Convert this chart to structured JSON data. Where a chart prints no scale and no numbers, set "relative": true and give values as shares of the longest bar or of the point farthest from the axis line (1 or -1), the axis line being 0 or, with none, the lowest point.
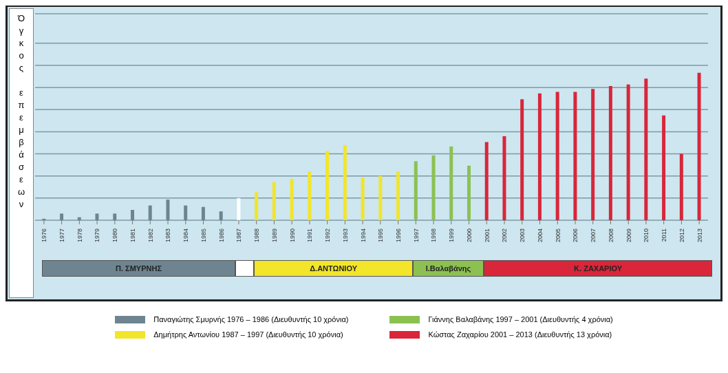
{
  "chart_data": {
    "type": "bar",
    "relative": true,
    "stacked": true,
    "ylabel": "Όγκος επεμβάσεων",
    "grid": "y",
    "legend": "bottom",
    "categories": [
      "1976",
      "1977",
      "1978",
      "1979",
      "1980",
      "1981",
      "1982",
      "1983",
      "1984",
      "1985",
      "1986",
      "1987",
      "1988",
      "1989",
      "1990",
      "1991",
      "1992",
      "1993",
      "1994",
      "1995",
      "1996",
      "1997",
      "1998",
      "1999",
      "2000",
      "2001",
      "2002",
      "2003",
      "2004",
      "2005",
      "2006",
      "2007",
      "2008",
      "2009",
      "2010",
      "2011",
      "2012",
      "2013"
    ],
    "series": [
      {
        "name": "Παναγιώτης Σμυρνής 1976 – 1986 (Διευθυντής 10 χρόνια)",
        "color": "#6e8591",
        "values": [
          0.01,
          0.045,
          0.02,
          0.045,
          0.045,
          0.07,
          0.1,
          0.14,
          0.1,
          0.09,
          0.06,
          null,
          null,
          null,
          null,
          null,
          null,
          null,
          null,
          null,
          null,
          null,
          null,
          null,
          null,
          null,
          null,
          null,
          null,
          null,
          null,
          null,
          null,
          null,
          null,
          null,
          null,
          null
        ]
      },
      {
        "color": "#ffffff",
        "values": [
          null,
          null,
          null,
          null,
          null,
          null,
          null,
          null,
          null,
          null,
          null,
          0.15,
          null,
          null,
          null,
          null,
          null,
          null,
          null,
          null,
          null,
          null,
          null,
          null,
          null,
          null,
          null,
          null,
          null,
          null,
          null,
          null,
          null,
          null,
          null,
          null,
          null,
          null
        ]
      },
      {
        "name": "Δημήτρης Αντωνίου 1987 – 1997 (Διευθυντής 10 χρόνια)",
        "color": "#f2e52a",
        "values": [
          null,
          null,
          null,
          null,
          null,
          null,
          null,
          null,
          null,
          null,
          null,
          null,
          0.19,
          0.26,
          0.28,
          0.33,
          0.47,
          0.51,
          0.29,
          0.3,
          0.33,
          null,
          null,
          null,
          null,
          null,
          null,
          null,
          null,
          null,
          null,
          null,
          null,
          null,
          null,
          null,
          null,
          null
        ]
      },
      {
        "name": "Γιάννης Βαλαβάνης 1997 – 2001 (Διευθυντής 4 χρόνια)",
        "color": "#8cc152",
        "values": [
          null,
          null,
          null,
          null,
          null,
          null,
          null,
          null,
          null,
          null,
          null,
          null,
          null,
          null,
          null,
          null,
          null,
          null,
          null,
          null,
          null,
          0.4,
          0.44,
          0.5,
          0.37,
          null,
          null,
          null,
          null,
          null,
          null,
          null,
          null,
          null,
          null,
          null,
          null,
          null
        ]
      },
      {
        "name": "Κώστας Ζαχαρίου 2001 – 2013 (Διευθυντής 13 χρόνια)",
        "color": "#d9263a",
        "values": [
          null,
          null,
          null,
          null,
          null,
          null,
          null,
          null,
          null,
          null,
          null,
          null,
          null,
          null,
          null,
          null,
          null,
          null,
          null,
          null,
          null,
          null,
          null,
          null,
          null,
          0.53,
          0.57,
          0.82,
          0.86,
          0.87,
          0.87,
          0.89,
          0.91,
          0.92,
          0.96,
          0.71,
          0.45,
          1
        ]
      }
    ],
    "annotations": [
      "Π. ΣΜΥΡΝΗΣ",
      "Δ.ΑΝΤΩΝΙΟΥ",
      "Ι.Βαλαβάνης",
      "Κ. ΖΑΧΑΡΙΟΥ"
    ]
  }
}
